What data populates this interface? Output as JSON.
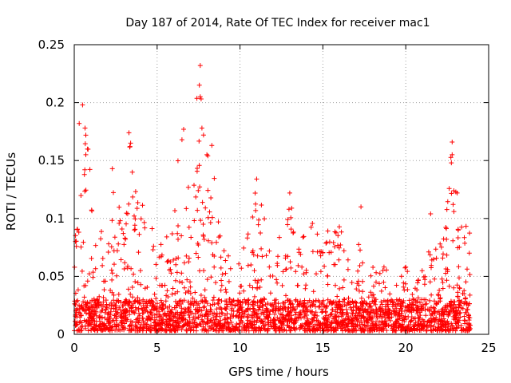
{
  "chart_data": {
    "type": "scatter",
    "title": "Day 187 of 2014, Rate Of TEC Index for receiver mac1",
    "xlabel": "GPS time / hours",
    "ylabel": "ROTI / TECUs",
    "xlim": [
      0,
      25
    ],
    "ylim": [
      0,
      0.25
    ],
    "x_ticks": [
      0,
      5,
      10,
      15,
      20,
      25
    ],
    "y_ticks": [
      0,
      0.05,
      0.1,
      0.15,
      0.2,
      0.25
    ],
    "x_tick_labels": [
      "0",
      "5",
      "10",
      "15",
      "20",
      "25"
    ],
    "y_tick_labels": [
      "0",
      "0.05",
      "0.1",
      "0.15",
      "0.2",
      "0.25"
    ],
    "grid": true,
    "marker": "plus",
    "color": "#ff0000",
    "series": [
      {
        "name": "ROTI",
        "data_extent_hours": [
          0,
          23.9
        ],
        "baseline_band": [
          0.003,
          0.03
        ],
        "envelope": [
          [
            0.0,
            0.06
          ],
          [
            0.2,
            0.14
          ],
          [
            0.35,
            0.18
          ],
          [
            0.5,
            0.13
          ],
          [
            0.7,
            0.2
          ],
          [
            0.9,
            0.16
          ],
          [
            1.2,
            0.1
          ],
          [
            1.6,
            0.09
          ],
          [
            2.0,
            0.08
          ],
          [
            2.3,
            0.14
          ],
          [
            2.6,
            0.12
          ],
          [
            3.0,
            0.1
          ],
          [
            3.3,
            0.175
          ],
          [
            3.6,
            0.13
          ],
          [
            4.0,
            0.12
          ],
          [
            4.5,
            0.1
          ],
          [
            5.0,
            0.08
          ],
          [
            5.5,
            0.09
          ],
          [
            6.0,
            0.13
          ],
          [
            6.5,
            0.18
          ],
          [
            7.0,
            0.12
          ],
          [
            7.5,
            0.235
          ],
          [
            7.8,
            0.18
          ],
          [
            8.3,
            0.16
          ],
          [
            8.6,
            0.12
          ],
          [
            9.0,
            0.09
          ],
          [
            9.5,
            0.07
          ],
          [
            10.0,
            0.065
          ],
          [
            10.5,
            0.1
          ],
          [
            11.0,
            0.135
          ],
          [
            11.5,
            0.1
          ],
          [
            12.0,
            0.07
          ],
          [
            12.5,
            0.1
          ],
          [
            13.0,
            0.125
          ],
          [
            13.5,
            0.08
          ],
          [
            14.0,
            0.1
          ],
          [
            14.5,
            0.11
          ],
          [
            15.0,
            0.09
          ],
          [
            15.5,
            0.09
          ],
          [
            16.0,
            0.11
          ],
          [
            16.5,
            0.07
          ],
          [
            17.0,
            0.05
          ],
          [
            17.3,
            0.11
          ],
          [
            17.6,
            0.04
          ],
          [
            18.0,
            0.06
          ],
          [
            18.5,
            0.07
          ],
          [
            19.0,
            0.05
          ],
          [
            19.5,
            0.045
          ],
          [
            20.0,
            0.06
          ],
          [
            20.5,
            0.045
          ],
          [
            21.0,
            0.06
          ],
          [
            21.5,
            0.09
          ],
          [
            22.0,
            0.08
          ],
          [
            22.5,
            0.12
          ],
          [
            22.8,
            0.17
          ],
          [
            23.2,
            0.125
          ],
          [
            23.5,
            0.1
          ],
          [
            23.9,
            0.09
          ]
        ],
        "sample_points": [
          [
            0.5,
            0.198
          ],
          [
            0.3,
            0.182
          ],
          [
            0.65,
            0.178
          ],
          [
            0.8,
            0.16
          ],
          [
            0.7,
            0.155
          ],
          [
            2.3,
            0.143
          ],
          [
            3.3,
            0.174
          ],
          [
            3.4,
            0.165
          ],
          [
            3.5,
            0.14
          ],
          [
            6.6,
            0.177
          ],
          [
            6.5,
            0.168
          ],
          [
            7.6,
            0.232
          ],
          [
            7.55,
            0.215
          ],
          [
            7.6,
            0.205
          ],
          [
            7.7,
            0.178
          ],
          [
            7.8,
            0.172
          ],
          [
            8.3,
            0.163
          ],
          [
            8.0,
            0.155
          ],
          [
            11.0,
            0.134
          ],
          [
            13.0,
            0.122
          ],
          [
            17.3,
            0.11
          ],
          [
            21.5,
            0.104
          ],
          [
            22.8,
            0.166
          ],
          [
            22.8,
            0.155
          ],
          [
            22.75,
            0.148
          ],
          [
            22.9,
            0.124
          ],
          [
            23.1,
            0.122
          ],
          [
            20.0,
            0.058
          ]
        ]
      }
    ]
  }
}
